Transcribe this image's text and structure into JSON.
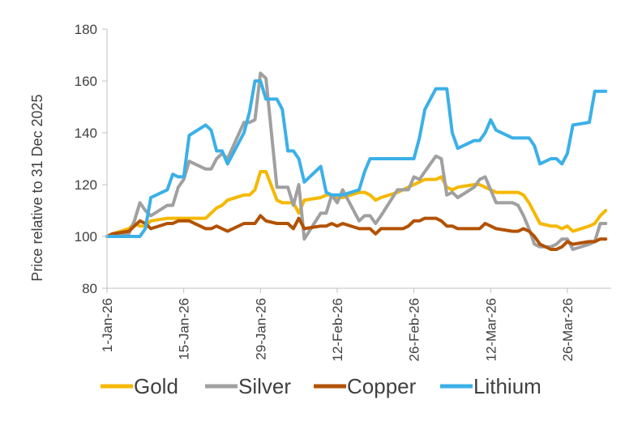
{
  "chart_data": {
    "type": "line",
    "ylabel": "Price relative to 31 Dec 2025",
    "ylim": [
      80,
      180
    ],
    "yticks": [
      80,
      100,
      120,
      140,
      160,
      180
    ],
    "grid": false,
    "legend_position": "bottom",
    "xtick_labels": [
      "1-Jan-26",
      "15-Jan-26",
      "29-Jan-26",
      "12-Feb-26",
      "26-Feb-26",
      "12-Mar-26",
      "26-Mar-26"
    ],
    "x_start": "2026-01-01",
    "x_end": "2026-04-03",
    "series": [
      {
        "name": "Gold",
        "color": "#F5B800",
        "points": [
          [
            "2026-01-01",
            100
          ],
          [
            "2026-01-02",
            101
          ],
          [
            "2026-01-05",
            103
          ],
          [
            "2026-01-06",
            105
          ],
          [
            "2026-01-07",
            104
          ],
          [
            "2026-01-08",
            104
          ],
          [
            "2026-01-09",
            106
          ],
          [
            "2026-01-12",
            107
          ],
          [
            "2026-01-13",
            107
          ],
          [
            "2026-01-14",
            107
          ],
          [
            "2026-01-15",
            107
          ],
          [
            "2026-01-16",
            107
          ],
          [
            "2026-01-19",
            107
          ],
          [
            "2026-01-20",
            109
          ],
          [
            "2026-01-21",
            111
          ],
          [
            "2026-01-22",
            112
          ],
          [
            "2026-01-23",
            114
          ],
          [
            "2026-01-26",
            116
          ],
          [
            "2026-01-27",
            116
          ],
          [
            "2026-01-28",
            118
          ],
          [
            "2026-01-29",
            125
          ],
          [
            "2026-01-30",
            125
          ],
          [
            "2026-02-01",
            114
          ],
          [
            "2026-02-02",
            113
          ],
          [
            "2026-02-03",
            113
          ],
          [
            "2026-02-04",
            113
          ],
          [
            "2026-02-05",
            109
          ],
          [
            "2026-02-06",
            114
          ],
          [
            "2026-02-09",
            115
          ],
          [
            "2026-02-10",
            116
          ],
          [
            "2026-02-11",
            116
          ],
          [
            "2026-02-12",
            115
          ],
          [
            "2026-02-13",
            115
          ],
          [
            "2026-02-16",
            117
          ],
          [
            "2026-02-17",
            117
          ],
          [
            "2026-02-18",
            116
          ],
          [
            "2026-02-19",
            114
          ],
          [
            "2026-02-20",
            115
          ],
          [
            "2026-02-23",
            117
          ],
          [
            "2026-02-24",
            118
          ],
          [
            "2026-02-25",
            119
          ],
          [
            "2026-02-26",
            120
          ],
          [
            "2026-02-27",
            121
          ],
          [
            "2026-02-28",
            122
          ],
          [
            "2026-03-02",
            122
          ],
          [
            "2026-03-03",
            123
          ],
          [
            "2026-03-04",
            119
          ],
          [
            "2026-03-05",
            118
          ],
          [
            "2026-03-06",
            119
          ],
          [
            "2026-03-09",
            120
          ],
          [
            "2026-03-10",
            120
          ],
          [
            "2026-03-11",
            119
          ],
          [
            "2026-03-12",
            118
          ],
          [
            "2026-03-13",
            117
          ],
          [
            "2026-03-16",
            117
          ],
          [
            "2026-03-17",
            117
          ],
          [
            "2026-03-18",
            116
          ],
          [
            "2026-03-19",
            113
          ],
          [
            "2026-03-20",
            109
          ],
          [
            "2026-03-21",
            105
          ],
          [
            "2026-03-23",
            104
          ],
          [
            "2026-03-24",
            104
          ],
          [
            "2026-03-25",
            103
          ],
          [
            "2026-03-26",
            104
          ],
          [
            "2026-03-27",
            102
          ],
          [
            "2026-03-30",
            104
          ],
          [
            "2026-03-31",
            105
          ],
          [
            "2026-04-01",
            108
          ],
          [
            "2026-04-02",
            110
          ]
        ]
      },
      {
        "name": "Silver",
        "color": "#A0A0A0",
        "points": [
          [
            "2026-01-01",
            100
          ],
          [
            "2026-01-02",
            101
          ],
          [
            "2026-01-05",
            101
          ],
          [
            "2026-01-06",
            106
          ],
          [
            "2026-01-07",
            113
          ],
          [
            "2026-01-08",
            110
          ],
          [
            "2026-01-09",
            108
          ],
          [
            "2026-01-12",
            112
          ],
          [
            "2026-01-13",
            112
          ],
          [
            "2026-01-14",
            119
          ],
          [
            "2026-01-15",
            122
          ],
          [
            "2026-01-16",
            129
          ],
          [
            "2026-01-19",
            126
          ],
          [
            "2026-01-20",
            126
          ],
          [
            "2026-01-21",
            130
          ],
          [
            "2026-01-22",
            132
          ],
          [
            "2026-01-23",
            130
          ],
          [
            "2026-01-26",
            144
          ],
          [
            "2026-01-27",
            144
          ],
          [
            "2026-01-28",
            145
          ],
          [
            "2026-01-29",
            163
          ],
          [
            "2026-01-30",
            161
          ],
          [
            "2026-02-01",
            119
          ],
          [
            "2026-02-02",
            119
          ],
          [
            "2026-02-03",
            119
          ],
          [
            "2026-02-04",
            112
          ],
          [
            "2026-02-05",
            120
          ],
          [
            "2026-02-06",
            99
          ],
          [
            "2026-02-09",
            109
          ],
          [
            "2026-02-10",
            109
          ],
          [
            "2026-02-11",
            116
          ],
          [
            "2026-02-12",
            113
          ],
          [
            "2026-02-13",
            118
          ],
          [
            "2026-02-16",
            106
          ],
          [
            "2026-02-17",
            108
          ],
          [
            "2026-02-18",
            108
          ],
          [
            "2026-02-19",
            105
          ],
          [
            "2026-02-20",
            108
          ],
          [
            "2026-02-23",
            118
          ],
          [
            "2026-02-24",
            118
          ],
          [
            "2026-02-25",
            118
          ],
          [
            "2026-02-26",
            123
          ],
          [
            "2026-02-27",
            122
          ],
          [
            "2026-02-28",
            125
          ],
          [
            "2026-03-02",
            131
          ],
          [
            "2026-03-03",
            130
          ],
          [
            "2026-03-04",
            116
          ],
          [
            "2026-03-05",
            117
          ],
          [
            "2026-03-06",
            115
          ],
          [
            "2026-03-09",
            119
          ],
          [
            "2026-03-10",
            122
          ],
          [
            "2026-03-11",
            123
          ],
          [
            "2026-03-12",
            118
          ],
          [
            "2026-03-13",
            113
          ],
          [
            "2026-03-16",
            113
          ],
          [
            "2026-03-17",
            112
          ],
          [
            "2026-03-18",
            108
          ],
          [
            "2026-03-19",
            103
          ],
          [
            "2026-03-20",
            97
          ],
          [
            "2026-03-21",
            96
          ],
          [
            "2026-03-23",
            96
          ],
          [
            "2026-03-24",
            97
          ],
          [
            "2026-03-25",
            99
          ],
          [
            "2026-03-26",
            99
          ],
          [
            "2026-03-27",
            95
          ],
          [
            "2026-03-30",
            97
          ],
          [
            "2026-03-31",
            98
          ],
          [
            "2026-04-01",
            105
          ],
          [
            "2026-04-02",
            105
          ]
        ]
      },
      {
        "name": "Copper",
        "color": "#B25200",
        "points": [
          [
            "2026-01-01",
            100
          ],
          [
            "2026-01-02",
            101
          ],
          [
            "2026-01-05",
            102
          ],
          [
            "2026-01-06",
            104
          ],
          [
            "2026-01-07",
            106
          ],
          [
            "2026-01-08",
            105
          ],
          [
            "2026-01-09",
            103
          ],
          [
            "2026-01-12",
            105
          ],
          [
            "2026-01-13",
            105
          ],
          [
            "2026-01-14",
            106
          ],
          [
            "2026-01-15",
            106
          ],
          [
            "2026-01-16",
            106
          ],
          [
            "2026-01-19",
            103
          ],
          [
            "2026-01-20",
            103
          ],
          [
            "2026-01-21",
            104
          ],
          [
            "2026-01-22",
            103
          ],
          [
            "2026-01-23",
            102
          ],
          [
            "2026-01-26",
            105
          ],
          [
            "2026-01-27",
            105
          ],
          [
            "2026-01-28",
            105
          ],
          [
            "2026-01-29",
            108
          ],
          [
            "2026-01-30",
            106
          ],
          [
            "2026-02-01",
            105
          ],
          [
            "2026-02-02",
            105
          ],
          [
            "2026-02-03",
            105
          ],
          [
            "2026-02-04",
            103
          ],
          [
            "2026-02-05",
            107
          ],
          [
            "2026-02-06",
            103
          ],
          [
            "2026-02-09",
            104
          ],
          [
            "2026-02-10",
            104
          ],
          [
            "2026-02-11",
            105
          ],
          [
            "2026-02-12",
            104
          ],
          [
            "2026-02-13",
            105
          ],
          [
            "2026-02-16",
            103
          ],
          [
            "2026-02-17",
            103
          ],
          [
            "2026-02-18",
            103
          ],
          [
            "2026-02-19",
            101
          ],
          [
            "2026-02-20",
            103
          ],
          [
            "2026-02-23",
            103
          ],
          [
            "2026-02-24",
            103
          ],
          [
            "2026-02-25",
            104
          ],
          [
            "2026-02-26",
            106
          ],
          [
            "2026-02-27",
            106
          ],
          [
            "2026-02-28",
            107
          ],
          [
            "2026-03-02",
            107
          ],
          [
            "2026-03-03",
            106
          ],
          [
            "2026-03-04",
            104
          ],
          [
            "2026-03-05",
            104
          ],
          [
            "2026-03-06",
            103
          ],
          [
            "2026-03-09",
            103
          ],
          [
            "2026-03-10",
            103
          ],
          [
            "2026-03-11",
            105
          ],
          [
            "2026-03-12",
            104
          ],
          [
            "2026-03-13",
            103
          ],
          [
            "2026-03-16",
            102
          ],
          [
            "2026-03-17",
            102
          ],
          [
            "2026-03-18",
            103
          ],
          [
            "2026-03-19",
            102
          ],
          [
            "2026-03-20",
            100
          ],
          [
            "2026-03-21",
            97
          ],
          [
            "2026-03-23",
            95
          ],
          [
            "2026-03-24",
            95
          ],
          [
            "2026-03-25",
            96
          ],
          [
            "2026-03-26",
            98
          ],
          [
            "2026-03-27",
            97
          ],
          [
            "2026-03-30",
            98
          ],
          [
            "2026-03-31",
            98
          ],
          [
            "2026-04-01",
            99
          ],
          [
            "2026-04-02",
            99
          ]
        ]
      },
      {
        "name": "Lithium",
        "color": "#3BB0E8",
        "points": [
          [
            "2026-01-01",
            100
          ],
          [
            "2026-01-02",
            100
          ],
          [
            "2026-01-05",
            100
          ],
          [
            "2026-01-06",
            100
          ],
          [
            "2026-01-07",
            100
          ],
          [
            "2026-01-08",
            103
          ],
          [
            "2026-01-09",
            115
          ],
          [
            "2026-01-12",
            118
          ],
          [
            "2026-01-13",
            124
          ],
          [
            "2026-01-14",
            123
          ],
          [
            "2026-01-15",
            123
          ],
          [
            "2026-01-16",
            139
          ],
          [
            "2026-01-19",
            143
          ],
          [
            "2026-01-20",
            141
          ],
          [
            "2026-01-21",
            133
          ],
          [
            "2026-01-22",
            133
          ],
          [
            "2026-01-23",
            128
          ],
          [
            "2026-01-26",
            140
          ],
          [
            "2026-01-27",
            148
          ],
          [
            "2026-01-28",
            160
          ],
          [
            "2026-01-29",
            160
          ],
          [
            "2026-01-30",
            153
          ],
          [
            "2026-02-01",
            153
          ],
          [
            "2026-02-02",
            149
          ],
          [
            "2026-02-03",
            133
          ],
          [
            "2026-02-04",
            133
          ],
          [
            "2026-02-05",
            130
          ],
          [
            "2026-02-06",
            121
          ],
          [
            "2026-02-09",
            127
          ],
          [
            "2026-02-10",
            117
          ],
          [
            "2026-02-11",
            116
          ],
          [
            "2026-02-12",
            116
          ],
          [
            "2026-02-13",
            116
          ],
          [
            "2026-02-16",
            118
          ],
          [
            "2026-02-17",
            125
          ],
          [
            "2026-02-18",
            130
          ],
          [
            "2026-02-19",
            130
          ],
          [
            "2026-02-20",
            130
          ],
          [
            "2026-02-23",
            130
          ],
          [
            "2026-02-24",
            130
          ],
          [
            "2026-02-25",
            130
          ],
          [
            "2026-02-26",
            130
          ],
          [
            "2026-02-27",
            138
          ],
          [
            "2026-02-28",
            149
          ],
          [
            "2026-03-02",
            157
          ],
          [
            "2026-03-03",
            157
          ],
          [
            "2026-03-04",
            157
          ],
          [
            "2026-03-05",
            140
          ],
          [
            "2026-03-06",
            134
          ],
          [
            "2026-03-09",
            137
          ],
          [
            "2026-03-10",
            137
          ],
          [
            "2026-03-11",
            140
          ],
          [
            "2026-03-12",
            145
          ],
          [
            "2026-03-13",
            141
          ],
          [
            "2026-03-16",
            138
          ],
          [
            "2026-03-17",
            138
          ],
          [
            "2026-03-18",
            138
          ],
          [
            "2026-03-19",
            138
          ],
          [
            "2026-03-20",
            135
          ],
          [
            "2026-03-21",
            128
          ],
          [
            "2026-03-23",
            130
          ],
          [
            "2026-03-24",
            130
          ],
          [
            "2026-03-25",
            128
          ],
          [
            "2026-03-26",
            132
          ],
          [
            "2026-03-27",
            143
          ],
          [
            "2026-03-30",
            144
          ],
          [
            "2026-03-31",
            156
          ],
          [
            "2026-04-01",
            156
          ],
          [
            "2026-04-02",
            156
          ]
        ]
      }
    ]
  }
}
